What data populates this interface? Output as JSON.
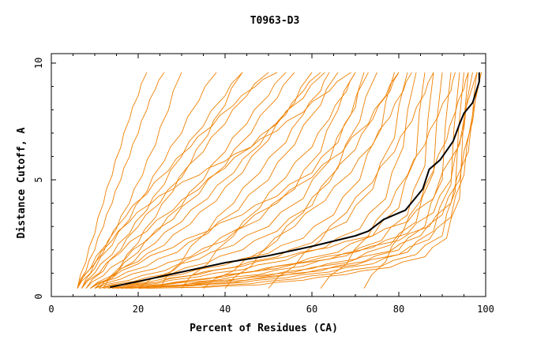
{
  "chart_data": {
    "type": "line",
    "title": "T0963-D3",
    "xlabel": "Percent of Residues (CA)",
    "ylabel": "Distance Cutoff, A",
    "xlim": [
      0,
      100
    ],
    "ylim": [
      0,
      10
    ],
    "x_ticks": [
      "0",
      "20",
      "40",
      "60",
      "80",
      "100"
    ],
    "y_ticks": [
      "0",
      "5",
      "10"
    ],
    "background_color": "#ffffff",
    "series_color": "#f08000",
    "highlight_color": "#000000",
    "highlight": {
      "x": [
        13.5,
        20,
        30,
        40,
        50,
        60,
        70,
        73,
        76.5,
        81.5,
        85.5,
        87,
        89.5,
        92.5,
        94,
        95,
        97,
        98.5,
        98.5
      ],
      "y": [
        0.4,
        0.65,
        1.05,
        1.45,
        1.75,
        2.15,
        2.6,
        2.8,
        3.3,
        3.7,
        4.6,
        5.45,
        5.85,
        6.65,
        7.4,
        7.85,
        8.3,
        9.2,
        9.6
      ]
    },
    "series": [
      {
        "x": [
          6,
          8,
          10,
          12,
          14,
          16,
          18,
          20,
          22
        ],
        "y": [
          0.35,
          1.5,
          2.7,
          4.0,
          5.2,
          6.4,
          7.6,
          8.6,
          9.6
        ]
      },
      {
        "x": [
          6,
          8,
          10,
          12,
          14,
          16,
          18,
          20,
          22,
          24,
          26
        ],
        "y": [
          0.35,
          1.1,
          2.0,
          3.0,
          4.0,
          5.0,
          6.0,
          7.0,
          8.0,
          8.9,
          9.6
        ]
      },
      {
        "x": [
          6,
          9,
          12,
          15,
          18,
          21,
          24,
          27,
          30
        ],
        "y": [
          0.35,
          1.0,
          1.9,
          2.9,
          4.0,
          5.2,
          6.5,
          8.0,
          9.6
        ]
      },
      {
        "x": [
          7,
          10,
          14,
          18,
          22,
          26,
          30,
          34,
          38
        ],
        "y": [
          0.35,
          1.2,
          2.2,
          3.3,
          4.5,
          5.8,
          7.0,
          8.4,
          9.6
        ]
      },
      {
        "x": [
          7,
          10,
          14,
          18,
          22,
          26,
          30,
          35,
          40,
          44
        ],
        "y": [
          0.35,
          1.0,
          1.8,
          2.7,
          3.7,
          4.8,
          6.0,
          7.3,
          8.6,
          9.6
        ]
      },
      {
        "x": [
          8,
          12,
          16,
          20,
          25,
          30,
          35,
          40,
          45,
          50
        ],
        "y": [
          0.35,
          1.1,
          2.0,
          3.0,
          4.0,
          5.1,
          6.2,
          7.4,
          8.6,
          9.6
        ]
      },
      {
        "x": [
          8,
          12,
          17,
          22,
          28,
          34,
          40,
          46,
          52,
          56
        ],
        "y": [
          0.35,
          0.9,
          1.6,
          2.4,
          3.3,
          4.4,
          5.6,
          7.0,
          8.5,
          9.6
        ]
      },
      {
        "x": [
          9,
          14,
          20,
          26,
          32,
          38,
          44,
          50,
          56,
          60
        ],
        "y": [
          0.35,
          0.9,
          1.5,
          2.2,
          3.1,
          4.1,
          5.3,
          6.7,
          8.3,
          9.6
        ]
      },
      {
        "x": [
          9,
          15,
          22,
          29,
          36,
          43,
          50,
          56,
          62,
          66
        ],
        "y": [
          0.35,
          0.8,
          1.3,
          1.9,
          2.7,
          3.7,
          5.0,
          6.5,
          8.2,
          9.6
        ]
      },
      {
        "x": [
          10,
          16,
          24,
          32,
          40,
          48,
          56,
          62,
          66,
          70
        ],
        "y": [
          0.35,
          0.75,
          1.2,
          1.7,
          2.4,
          3.3,
          4.6,
          6.2,
          8.0,
          9.6
        ]
      },
      {
        "x": [
          10,
          18,
          26,
          34,
          42,
          50,
          58,
          64,
          69,
          73
        ],
        "y": [
          0.35,
          0.7,
          1.1,
          1.6,
          2.2,
          3.0,
          4.2,
          5.8,
          7.8,
          9.6
        ]
      },
      {
        "x": [
          11,
          19,
          28,
          36,
          44,
          52,
          60,
          66,
          71,
          75
        ],
        "y": [
          0.35,
          0.65,
          1.0,
          1.45,
          2.0,
          2.8,
          3.9,
          5.5,
          7.5,
          9.6
        ]
      },
      {
        "x": [
          11,
          20,
          30,
          40,
          50,
          58,
          65,
          71,
          76,
          79
        ],
        "y": [
          0.35,
          0.6,
          0.95,
          1.35,
          1.85,
          2.5,
          3.5,
          5.0,
          7.2,
          9.6
        ]
      },
      {
        "x": [
          12,
          22,
          32,
          42,
          52,
          60,
          68,
          74,
          79,
          82
        ],
        "y": [
          0.35,
          0.6,
          0.9,
          1.25,
          1.7,
          2.3,
          3.2,
          4.6,
          6.8,
          9.6
        ]
      },
      {
        "x": [
          13,
          24,
          34,
          44,
          54,
          63,
          71,
          77,
          81,
          84
        ],
        "y": [
          0.35,
          0.55,
          0.85,
          1.15,
          1.55,
          2.1,
          2.9,
          4.2,
          6.4,
          9.6
        ]
      },
      {
        "x": [
          14,
          25,
          36,
          46,
          56,
          66,
          74,
          80,
          84,
          86
        ],
        "y": [
          0.35,
          0.5,
          0.75,
          1.05,
          1.4,
          1.9,
          2.6,
          3.8,
          6.0,
          9.6
        ]
      },
      {
        "x": [
          15,
          26,
          38,
          48,
          58,
          68,
          76,
          82,
          86,
          88
        ],
        "y": [
          0.35,
          0.5,
          0.7,
          0.95,
          1.3,
          1.75,
          2.4,
          3.5,
          5.6,
          9.6
        ]
      },
      {
        "x": [
          16,
          28,
          40,
          50,
          60,
          70,
          78,
          84,
          88,
          90
        ],
        "y": [
          0.35,
          0.45,
          0.65,
          0.9,
          1.2,
          1.6,
          2.2,
          3.2,
          5.3,
          9.6
        ]
      },
      {
        "x": [
          17,
          30,
          42,
          52,
          62,
          72,
          80,
          86,
          90,
          92
        ],
        "y": [
          0.35,
          0.45,
          0.6,
          0.85,
          1.1,
          1.5,
          2.0,
          3.0,
          5.0,
          9.6
        ]
      },
      {
        "x": [
          18,
          32,
          44,
          54,
          64,
          74,
          82,
          88,
          92,
          94
        ],
        "y": [
          0.35,
          0.45,
          0.6,
          0.8,
          1.05,
          1.4,
          1.9,
          2.8,
          4.8,
          9.6
        ]
      },
      {
        "x": [
          20,
          34,
          46,
          56,
          66,
          76,
          84,
          90,
          93,
          95
        ],
        "y": [
          0.35,
          0.4,
          0.55,
          0.75,
          1.0,
          1.3,
          1.8,
          2.6,
          4.5,
          9.6
        ]
      },
      {
        "x": [
          22,
          36,
          48,
          58,
          68,
          78,
          86,
          91,
          94,
          96
        ],
        "y": [
          0.35,
          0.4,
          0.5,
          0.7,
          0.95,
          1.25,
          1.7,
          2.5,
          4.2,
          9.6
        ]
      },
      {
        "x": [
          14,
          24,
          34,
          44,
          54,
          64,
          74,
          82,
          88,
          94,
          98
        ],
        "y": [
          0.35,
          0.6,
          0.95,
          1.3,
          1.7,
          2.1,
          2.6,
          3.2,
          4.2,
          6.5,
          9.6
        ]
      },
      {
        "x": [
          15,
          26,
          37,
          48,
          59,
          70,
          80,
          87,
          92,
          96,
          99
        ],
        "y": [
          0.35,
          0.5,
          0.8,
          1.1,
          1.5,
          1.9,
          2.4,
          3.0,
          4.0,
          6.2,
          9.6
        ]
      },
      {
        "x": [
          16,
          28,
          40,
          52,
          64,
          74,
          82,
          88,
          92,
          95,
          97
        ],
        "y": [
          0.35,
          0.55,
          0.85,
          1.2,
          1.6,
          2.1,
          2.7,
          3.6,
          5.0,
          7.2,
          9.6
        ]
      },
      {
        "x": [
          18,
          30,
          43,
          56,
          68,
          78,
          85,
          90,
          94,
          97,
          99
        ],
        "y": [
          0.35,
          0.5,
          0.75,
          1.05,
          1.45,
          1.95,
          2.6,
          3.5,
          5.0,
          7.5,
          9.6
        ]
      },
      {
        "x": [
          20,
          32,
          45,
          58,
          70,
          80,
          87,
          92,
          95,
          97,
          98
        ],
        "y": [
          0.35,
          0.5,
          0.7,
          1.0,
          1.35,
          1.8,
          2.45,
          3.4,
          5.2,
          7.8,
          9.6
        ]
      },
      {
        "x": [
          12,
          16,
          20,
          24,
          28,
          32,
          36,
          40,
          44
        ],
        "y": [
          0.35,
          1.3,
          2.3,
          3.4,
          4.5,
          5.7,
          6.9,
          8.2,
          9.6
        ]
      },
      {
        "x": [
          11,
          15,
          20,
          25,
          30,
          35,
          40,
          45,
          50,
          54
        ],
        "y": [
          0.35,
          1.0,
          1.9,
          2.9,
          3.9,
          5.0,
          6.2,
          7.4,
          8.6,
          9.6
        ]
      },
      {
        "x": [
          10,
          14,
          19,
          24,
          30,
          36,
          42,
          48,
          54,
          58,
          62
        ],
        "y": [
          0.35,
          0.8,
          1.5,
          2.3,
          3.2,
          4.2,
          5.3,
          6.5,
          7.8,
          8.8,
          9.6
        ]
      },
      {
        "x": [
          6,
          9,
          13,
          17,
          22,
          27,
          32,
          37,
          42,
          47,
          52
        ],
        "y": [
          0.35,
          1.2,
          2.3,
          3.4,
          4.4,
          5.4,
          6.4,
          7.3,
          8.2,
          9.0,
          9.6
        ]
      },
      {
        "x": [
          7,
          11,
          16,
          22,
          28,
          34,
          40,
          46,
          52,
          58,
          63
        ],
        "y": [
          0.35,
          1.0,
          1.9,
          2.8,
          3.7,
          4.6,
          5.5,
          6.4,
          7.4,
          8.5,
          9.6
        ]
      },
      {
        "x": [
          9,
          14,
          20,
          28,
          36,
          44,
          52,
          60,
          66,
          70,
          72
        ],
        "y": [
          0.35,
          0.8,
          1.4,
          2.1,
          2.8,
          3.5,
          4.3,
          5.3,
          6.6,
          8.1,
          9.6
        ]
      },
      {
        "x": [
          6,
          10,
          14,
          18,
          23,
          28,
          34,
          40,
          46,
          52,
          58,
          64,
          69
        ],
        "y": [
          0.35,
          1.4,
          2.4,
          3.2,
          4.0,
          4.6,
          5.2,
          5.8,
          6.4,
          7.1,
          7.9,
          8.8,
          9.6
        ]
      },
      {
        "x": [
          25,
          30,
          36,
          42,
          48,
          54,
          58,
          62,
          64
        ],
        "y": [
          0.35,
          1.5,
          2.8,
          4.0,
          5.3,
          6.6,
          7.8,
          8.8,
          9.6
        ]
      },
      {
        "x": [
          30,
          36,
          42,
          48,
          54,
          60,
          64,
          68,
          70
        ],
        "y": [
          0.35,
          1.4,
          2.6,
          3.8,
          5.1,
          6.4,
          7.6,
          8.8,
          9.6
        ]
      },
      {
        "x": [
          40,
          46,
          52,
          58,
          64,
          70,
          74,
          78,
          80
        ],
        "y": [
          0.35,
          1.3,
          2.4,
          3.6,
          4.9,
          6.3,
          7.6,
          8.8,
          9.6
        ]
      },
      {
        "x": [
          50,
          56,
          62,
          68,
          74,
          79,
          83,
          86,
          88
        ],
        "y": [
          0.35,
          1.3,
          2.4,
          3.6,
          4.9,
          6.2,
          7.5,
          8.7,
          9.6
        ]
      },
      {
        "x": [
          62,
          68,
          73,
          78,
          82,
          86,
          89,
          92,
          93
        ],
        "y": [
          0.35,
          1.4,
          2.6,
          3.9,
          5.2,
          6.5,
          7.7,
          8.8,
          9.6
        ]
      },
      {
        "x": [
          72,
          77,
          81,
          85,
          88,
          91,
          93,
          95,
          96
        ],
        "y": [
          0.35,
          1.5,
          2.8,
          4.1,
          5.4,
          6.7,
          7.9,
          8.9,
          9.6
        ]
      },
      {
        "x": [
          20,
          28,
          36,
          44,
          52,
          60,
          67,
          73,
          77,
          80
        ],
        "y": [
          0.35,
          1.1,
          2.0,
          3.0,
          4.0,
          5.1,
          6.2,
          7.4,
          8.6,
          9.6
        ]
      },
      {
        "x": [
          35,
          42,
          49,
          56,
          63,
          69,
          74,
          78,
          81,
          83
        ],
        "y": [
          0.35,
          1.1,
          2.0,
          3.0,
          4.1,
          5.3,
          6.5,
          7.7,
          8.8,
          9.6
        ]
      }
    ]
  }
}
